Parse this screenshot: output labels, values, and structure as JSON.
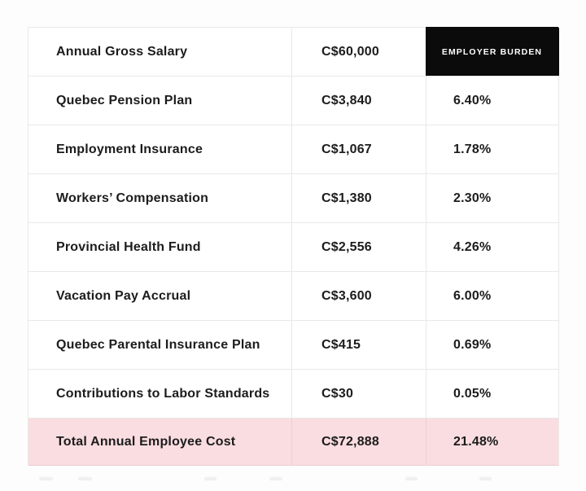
{
  "colors": {
    "page_background": "#fdfdfd",
    "cell_background": "#ffffff",
    "border": "#e9e9e9",
    "header_burden_bg": "#0b0b0b",
    "header_burden_text": "#ffffff",
    "total_row_bg": "#fadde1",
    "text": "#1c1c1c"
  },
  "table": {
    "header": {
      "label": "Annual Gross Salary",
      "value": "C$60,000",
      "burden_header": "EMPLOYER BURDEN"
    },
    "rows": [
      {
        "label": "Quebec Pension Plan",
        "value": "C$3,840",
        "burden": "6.40%"
      },
      {
        "label": "Employment Insurance",
        "value": "C$1,067",
        "burden": "1.78%"
      },
      {
        "label": "Workers’ Compensation",
        "value": "C$1,380",
        "burden": "2.30%"
      },
      {
        "label": "Provincial Health Fund",
        "value": "C$2,556",
        "burden": "4.26%"
      },
      {
        "label": "Vacation Pay Accrual",
        "value": "C$3,600",
        "burden": "6.00%"
      },
      {
        "label": "Quebec Parental Insurance Plan",
        "value": "C$415",
        "burden": "0.69%"
      },
      {
        "label": "Contributions to Labor Standards",
        "value": "C$30",
        "burden": "0.05%"
      }
    ],
    "total_row": {
      "label": "Total Annual Employee Cost",
      "value": "C$72,888",
      "burden": "21.48%"
    }
  },
  "chart_data": {
    "type": "table",
    "title": "",
    "header_row": [
      "Annual Gross Salary",
      "C$60,000",
      "EMPLOYER BURDEN"
    ],
    "rows": [
      [
        "Quebec Pension Plan",
        "C$3,840",
        "6.40%"
      ],
      [
        "Employment Insurance",
        "C$1,067",
        "1.78%"
      ],
      [
        "Workers’ Compensation",
        "C$1,380",
        "2.30%"
      ],
      [
        "Provincial Health Fund",
        "C$2,556",
        "4.26%"
      ],
      [
        "Vacation Pay Accrual",
        "C$3,600",
        "6.00%"
      ],
      [
        "Quebec Parental Insurance Plan",
        "C$415",
        "0.69%"
      ],
      [
        "Contributions to Labor Standards",
        "C$30",
        "0.05%"
      ],
      [
        "Total Annual Employee Cost",
        "C$72,888",
        "21.48%"
      ]
    ],
    "burden_values_pct": [
      6.4,
      1.78,
      2.3,
      4.26,
      6.0,
      0.69,
      0.05
    ],
    "total_burden_pct": 21.48,
    "amounts_cad": [
      3840,
      1067,
      1380,
      2556,
      3600,
      415,
      30
    ],
    "gross_salary_cad": 60000,
    "total_cost_cad": 72888,
    "layout_hints": {
      "total_row_highlight": "#fadde1",
      "header_cell_highlight": "#0b0b0b"
    }
  }
}
